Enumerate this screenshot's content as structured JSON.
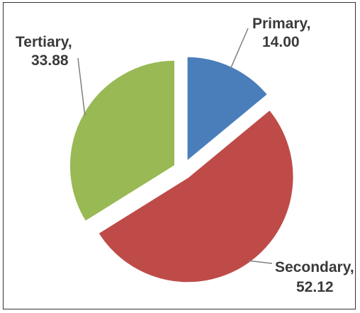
{
  "chart_data": {
    "type": "pie",
    "title": "",
    "slices": [
      {
        "label": "Primary",
        "value": 14.0,
        "value_text": "14.00",
        "color": "#4a7ebb"
      },
      {
        "label": "Secondary",
        "value": 52.12,
        "value_text": "52.12",
        "color": "#be4b48"
      },
      {
        "label": "Tertiary",
        "value": 33.88,
        "value_text": "33.88",
        "color": "#98b954"
      }
    ],
    "start_angle_deg": 0,
    "direction": "clockwise",
    "exploded": true,
    "legend": "none",
    "data_labels": "outside with leader lines"
  }
}
